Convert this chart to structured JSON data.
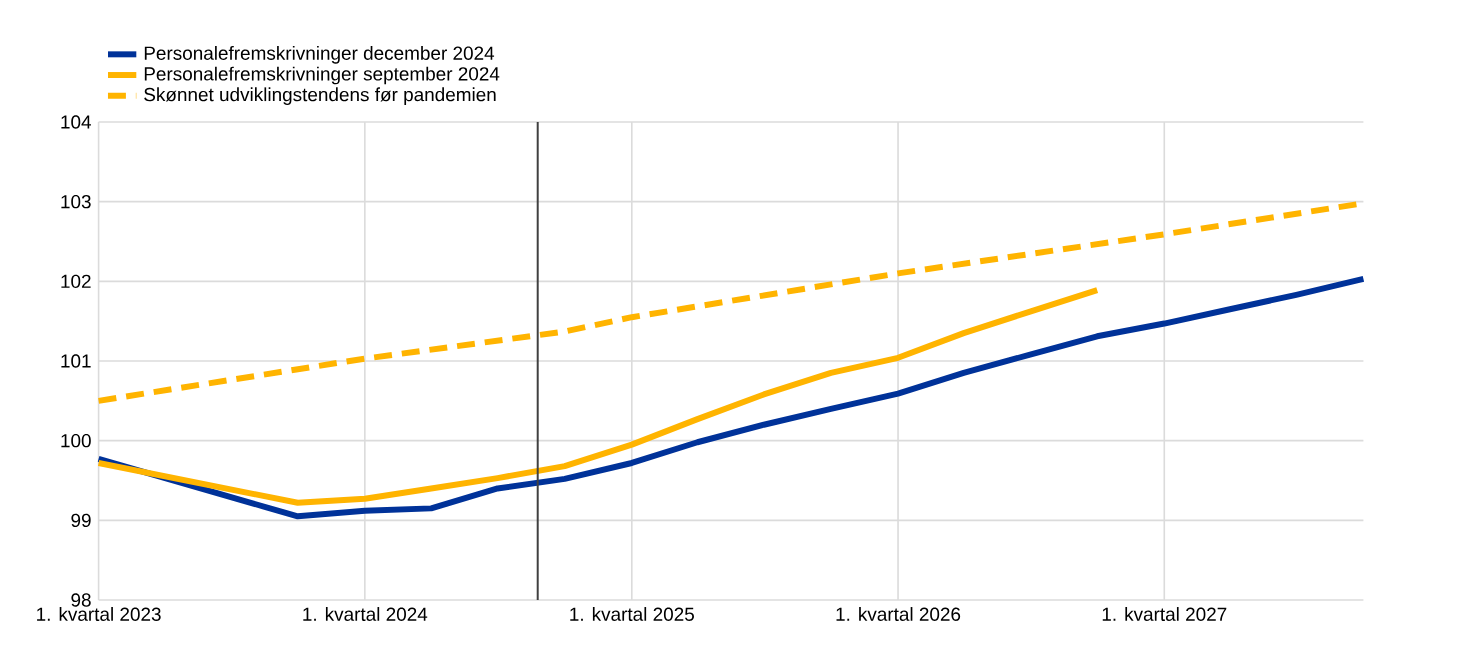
{
  "chart_data": {
    "type": "line",
    "x": [
      "2023-01",
      "2023-10",
      "2024-01",
      "2024-04",
      "2024-07",
      "2024-10",
      "2025-01",
      "2025-04",
      "2025-07",
      "2025-10",
      "2026-01",
      "2026-04",
      "2026-07",
      "2026-10",
      "2027-01",
      "2027-04",
      "2027-07",
      "2027-10"
    ],
    "xlim": [
      "2023-01",
      "2027-10"
    ],
    "xticks": [
      {
        "value": "2023-01",
        "label": "1. kvartal 2023"
      },
      {
        "value": "2024-01",
        "label": "1. kvartal 2024"
      },
      {
        "value": "2025-01",
        "label": "1. kvartal 2025"
      },
      {
        "value": "2026-01",
        "label": "1. kvartal 2026"
      },
      {
        "value": "2027-01",
        "label": "1. kvartal 2027"
      }
    ],
    "ylim": [
      98,
      104
    ],
    "yticks": [
      98,
      99,
      100,
      101,
      102,
      103,
      104
    ],
    "grid": true,
    "legend": "top left",
    "marker": "none",
    "ref_lines": [
      {
        "axis": "x",
        "value": "2024-08-25",
        "color": "#404040"
      }
    ],
    "series": [
      {
        "name": "Personalefremskrivninger december 2024",
        "color": "#003299",
        "line_style": "solid",
        "values": [
          99.77,
          99.05,
          99.12,
          99.15,
          99.4,
          99.52,
          99.72,
          99.98,
          100.2,
          100.4,
          100.59,
          100.85,
          101.08,
          101.31,
          101.47,
          101.65,
          101.83,
          102.03
        ]
      },
      {
        "name": "Personalefremskrivninger september 2024",
        "color": "#ffb400",
        "line_style": "solid",
        "x": [
          "2023-01",
          "2023-10",
          "2024-01",
          "2024-04",
          "2024-07",
          "2024-10",
          "2025-01",
          "2025-04",
          "2025-07",
          "2025-10",
          "2026-01",
          "2026-04",
          "2026-07",
          "2026-10"
        ],
        "values": [
          99.72,
          99.22,
          99.27,
          99.4,
          99.53,
          99.68,
          99.95,
          100.27,
          100.58,
          100.85,
          101.04,
          101.35,
          101.62,
          101.89
        ]
      },
      {
        "name": "Skønnet udviklingstendens før pandemien",
        "color": "#ffb400",
        "line_style": "dashed",
        "x": [
          "2023-01",
          "2024-01",
          "2024-10",
          "2025-01",
          "2026-01",
          "2027-01",
          "2027-10"
        ],
        "values": [
          100.5,
          101.03,
          101.37,
          101.55,
          102.1,
          102.59,
          102.98
        ]
      }
    ]
  }
}
